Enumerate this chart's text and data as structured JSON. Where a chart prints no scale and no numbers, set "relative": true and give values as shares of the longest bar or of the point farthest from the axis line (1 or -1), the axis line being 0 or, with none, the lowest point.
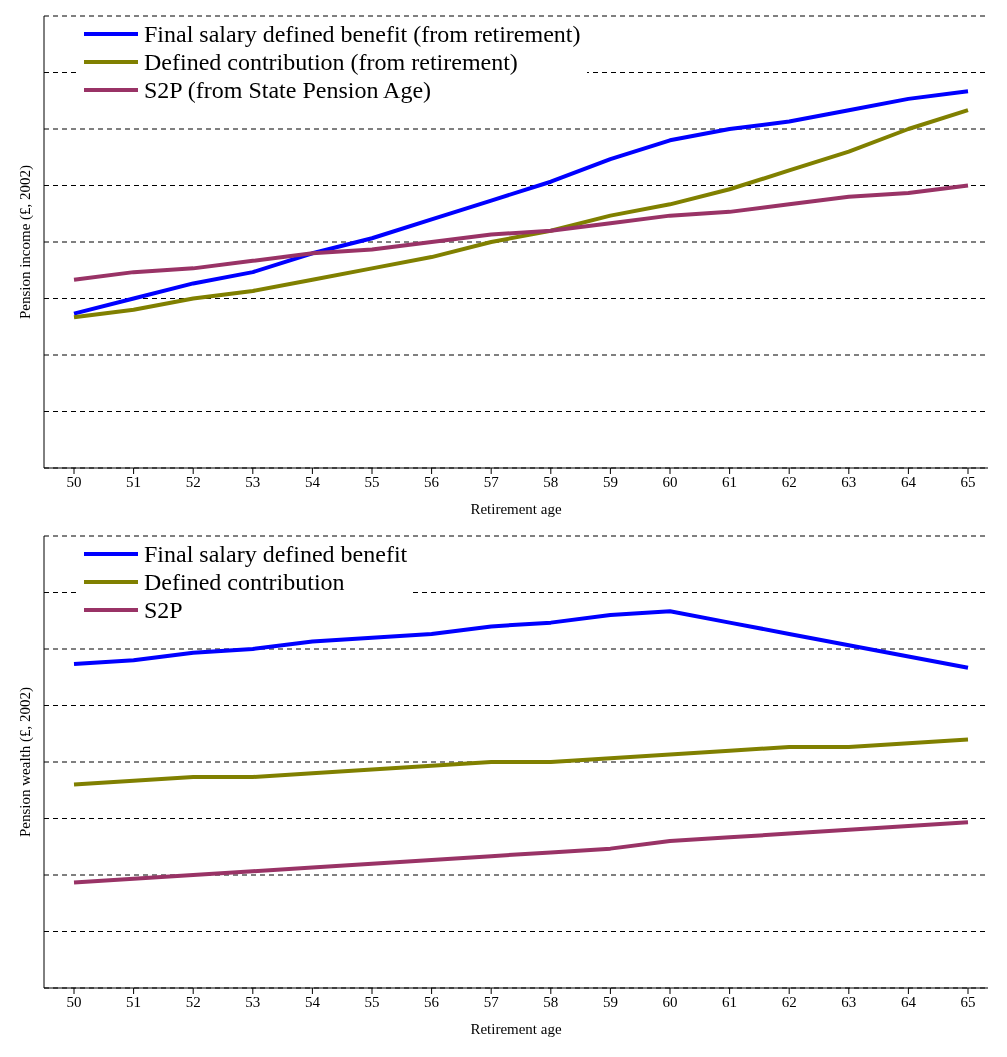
{
  "chart_data": [
    {
      "type": "line",
      "relative": true,
      "xlabel": "Retirement age",
      "ylabel": "Pension income (£, 2002)",
      "grid": "y",
      "legend": "top left",
      "marker": "none",
      "line_style": "solid",
      "categories": [
        "50",
        "51",
        "52",
        "53",
        "54",
        "55",
        "56",
        "57",
        "58",
        "59",
        "60",
        "61",
        "62",
        "63",
        "64",
        "65"
      ],
      "series": [
        {
          "name": "Final salary defined benefit (from retirement)",
          "color": "#0000ff",
          "values": [
            0.41,
            0.45,
            0.49,
            0.52,
            0.57,
            0.61,
            0.66,
            0.71,
            0.76,
            0.82,
            0.87,
            0.9,
            0.92,
            0.95,
            0.98,
            1
          ]
        },
        {
          "name": "Defined contribution (from retirement)",
          "color": "#808000",
          "values": [
            0.4,
            0.42,
            0.45,
            0.47,
            0.5,
            0.53,
            0.56,
            0.6,
            0.63,
            0.67,
            0.7,
            0.74,
            0.79,
            0.84,
            0.9,
            0.95
          ]
        },
        {
          "name": "S2P (from State Pension Age)",
          "color": "#993366",
          "values": [
            0.5,
            0.52,
            0.53,
            0.55,
            0.57,
            0.58,
            0.6,
            0.62,
            0.63,
            0.65,
            0.67,
            0.68,
            0.7,
            0.72,
            0.73,
            0.75
          ]
        }
      ]
    },
    {
      "type": "line",
      "relative": true,
      "xlabel": "Retirement age",
      "ylabel": "Pension wealth (£, 2002)",
      "grid": "y",
      "legend": "top left",
      "marker": "none",
      "line_style": "solid",
      "categories": [
        "50",
        "51",
        "52",
        "53",
        "54",
        "55",
        "56",
        "57",
        "58",
        "59",
        "60",
        "61",
        "62",
        "63",
        "64",
        "65"
      ],
      "series": [
        {
          "name": "Final salary defined benefit",
          "color": "#0000ff",
          "values": [
            0.86,
            0.87,
            0.89,
            0.9,
            0.92,
            0.93,
            0.94,
            0.96,
            0.97,
            0.99,
            1,
            0.97,
            0.94,
            0.91,
            0.88,
            0.85
          ]
        },
        {
          "name": "Defined contribution",
          "color": "#808000",
          "values": [
            0.54,
            0.55,
            0.56,
            0.56,
            0.57,
            0.58,
            0.59,
            0.6,
            0.6,
            0.61,
            0.62,
            0.63,
            0.64,
            0.64,
            0.65,
            0.66
          ]
        },
        {
          "name": "S2P",
          "color": "#993366",
          "values": [
            0.28,
            0.29,
            0.3,
            0.31,
            0.32,
            0.33,
            0.34,
            0.35,
            0.36,
            0.37,
            0.39,
            0.4,
            0.41,
            0.42,
            0.43,
            0.44
          ]
        }
      ]
    }
  ]
}
